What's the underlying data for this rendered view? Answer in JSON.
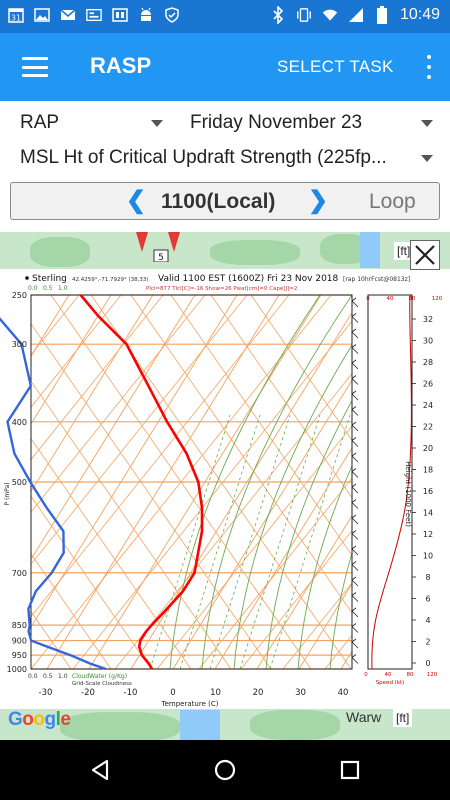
{
  "statusbar": {
    "calendar_day": "31",
    "time": "10:49"
  },
  "appbar": {
    "title": "RASP",
    "select_task": "SELECT TASK"
  },
  "selectors": {
    "model": "RAP",
    "day": "Friday November 23",
    "parameter": "MSL Ht of Critical Updraft Strength (225fp..."
  },
  "timebar": {
    "prev_symbol": "❮",
    "time": "1100(Local)",
    "next_symbol": "❯",
    "loop": "Loop"
  },
  "map": {
    "units_label_top": "[ft]",
    "units_label_bottom": "[ft]",
    "town_fragment": "Warw",
    "google": [
      "G",
      "o",
      "o",
      "g",
      "l",
      "e"
    ],
    "google_colors": [
      "#4285f4",
      "#ea4335",
      "#fbbc05",
      "#4285f4",
      "#34a853",
      "#ea4335"
    ]
  },
  "sounding": {
    "station": "Sterling",
    "coords": "42.4259°,-71.7929° (38,33)",
    "valid": "Valid 1100 EST (1600Z) Fri 23 Nov 2018",
    "model_run": "[rap 10hrFcst@0813z]",
    "indices": "Plcl=877 Tlcl[C]=-16 Show=26 Pwat[cm]=0 Cape[J]=2",
    "cloud_scale_top": [
      "0.0",
      "0.5",
      "1.0"
    ],
    "cloud_scale_bottom": [
      "0.0",
      "0.5",
      "1.0"
    ],
    "cloudwater_label": "CloudWater (g/Kg)",
    "gridscale_label": "Grid-Scale Cloudiness",
    "pressure_axis_label": "P (mPa)",
    "temperature_axis_label": "Temperature (C)",
    "height_axis_label": "Height (1000 Feet)",
    "speed_label": "Speed (kt)",
    "pressure_ticks": [
      "250",
      "300",
      "400",
      "500",
      "700",
      "850",
      "900",
      "950",
      "1000"
    ],
    "pressure_values": [
      250,
      300,
      400,
      500,
      700,
      850,
      900,
      950,
      1000
    ],
    "temperature_ticks": [
      "-30",
      "-20",
      "-10",
      "0",
      "10",
      "20",
      "30",
      "40"
    ],
    "temperature_values": [
      -30,
      -20,
      -10,
      0,
      10,
      20,
      30,
      40
    ],
    "height_ticks": [
      "0",
      "2",
      "4",
      "6",
      "8",
      "10",
      "12",
      "14",
      "16",
      "18",
      "20",
      "22",
      "24",
      "26",
      "28",
      "30",
      "32"
    ],
    "speed_ticks_top": [
      "0",
      "40",
      "80"
    ],
    "speed_ticks_bottom": [
      "0",
      "40",
      "80",
      "120"
    ],
    "speed_ticks_right": [
      "120"
    ],
    "colors": {
      "temperature": "#ff0000",
      "dewpoint": "#3366dd",
      "dry_adiabat": "#f4a460",
      "moist_adiabat": "#6aaa4f",
      "isotherm": "#f4a460"
    }
  }
}
